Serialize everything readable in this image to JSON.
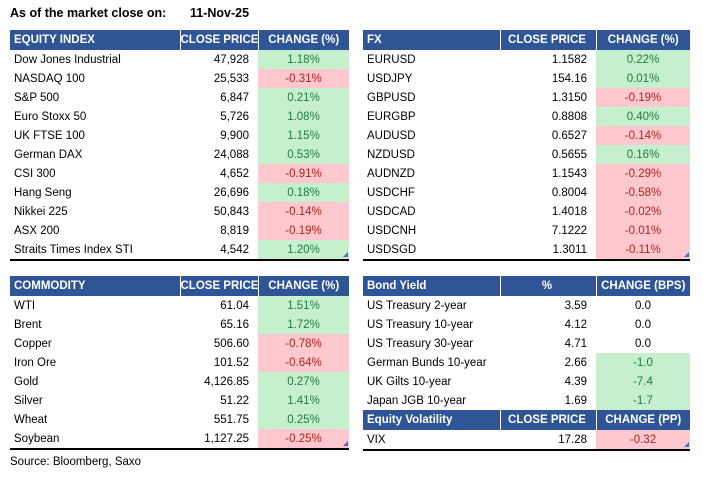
{
  "header": {
    "as_of_label": "As of the market close on:",
    "as_of_date": "11-Nov-25"
  },
  "footer": {
    "source": "Source: Bloomberg, Saxo"
  },
  "colors": {
    "header_bg": "#2F5597",
    "header_text": "#FFFFFF",
    "pos_bg": "#C6EFCE",
    "pos_text": "#1F7C3F",
    "neg_bg": "#FFC7CE",
    "neg_text": "#B02418",
    "handle_blue": "#4472C4",
    "table_border": "#000000"
  },
  "tables": {
    "equity_index": {
      "columns": {
        "name": "EQUITY INDEX",
        "price": "CLOSE PRICE",
        "change": "CHANGE (%)"
      },
      "rows": [
        {
          "name": "Dow Jones Industrial",
          "price": "47,928",
          "change": "1.18%",
          "tone": "pos"
        },
        {
          "name": "NASDAQ 100",
          "price": "25,533",
          "change": "-0.31%",
          "tone": "neg"
        },
        {
          "name": "S&P 500",
          "price": "6,847",
          "change": "0.21%",
          "tone": "pos"
        },
        {
          "name": "Euro Stoxx 50",
          "price": "5,726",
          "change": "1.08%",
          "tone": "pos"
        },
        {
          "name": "UK FTSE 100",
          "price": "9,900",
          "change": "1.15%",
          "tone": "pos"
        },
        {
          "name": "German DAX",
          "price": "24,088",
          "change": "0.53%",
          "tone": "pos"
        },
        {
          "name": "CSI 300",
          "price": "4,652",
          "change": "-0.91%",
          "tone": "neg"
        },
        {
          "name": "Hang Seng",
          "price": "26,696",
          "change": "0.18%",
          "tone": "pos"
        },
        {
          "name": "Nikkei 225",
          "price": "50,843",
          "change": "-0.14%",
          "tone": "neg"
        },
        {
          "name": "ASX 200",
          "price": "8,819",
          "change": "-0.19%",
          "tone": "neg"
        },
        {
          "name": "Straits Times Index STI",
          "price": "4,542",
          "change": "1.20%",
          "tone": "pos"
        }
      ]
    },
    "fx": {
      "columns": {
        "name": "FX",
        "price": "CLOSE PRICE",
        "change": "CHANGE (%)"
      },
      "rows": [
        {
          "name": "EURUSD",
          "price": "1.1582",
          "change": "0.22%",
          "tone": "pos"
        },
        {
          "name": "USDJPY",
          "price": "154.16",
          "change": "0.01%",
          "tone": "pos"
        },
        {
          "name": "GBPUSD",
          "price": "1.3150",
          "change": "-0.19%",
          "tone": "neg"
        },
        {
          "name": "EURGBP",
          "price": "0.8808",
          "change": "0.40%",
          "tone": "pos"
        },
        {
          "name": "AUDUSD",
          "price": "0.6527",
          "change": "-0.14%",
          "tone": "neg"
        },
        {
          "name": "NZDUSD",
          "price": "0.5655",
          "change": "0.16%",
          "tone": "pos"
        },
        {
          "name": "AUDNZD",
          "price": "1.1543",
          "change": "-0.29%",
          "tone": "neg"
        },
        {
          "name": "USDCHF",
          "price": "0.8004",
          "change": "-0.58%",
          "tone": "neg"
        },
        {
          "name": "USDCAD",
          "price": "1.4018",
          "change": "-0.02%",
          "tone": "neg"
        },
        {
          "name": "USDCNH",
          "price": "7.1222",
          "change": "-0.01%",
          "tone": "neg"
        },
        {
          "name": "USDSGD",
          "price": "1.3011",
          "change": "-0.11%",
          "tone": "neg"
        }
      ]
    },
    "commodity": {
      "columns": {
        "name": "COMMODITY",
        "price": "CLOSE PRICE",
        "change": "CHANGE (%)"
      },
      "rows": [
        {
          "name": "WTI",
          "price": "61.04",
          "change": "1.51%",
          "tone": "pos"
        },
        {
          "name": "Brent",
          "price": "65.16",
          "change": "1.72%",
          "tone": "pos"
        },
        {
          "name": "Copper",
          "price": "506.60",
          "change": "-0.78%",
          "tone": "neg"
        },
        {
          "name": "Iron Ore",
          "price": "101.52",
          "change": "-0.64%",
          "tone": "neg"
        },
        {
          "name": "Gold",
          "price": "4,126.85",
          "change": "0.27%",
          "tone": "pos"
        },
        {
          "name": "Silver",
          "price": "51.22",
          "change": "1.41%",
          "tone": "pos"
        },
        {
          "name": "Wheat",
          "price": "551.75",
          "change": "0.25%",
          "tone": "pos"
        },
        {
          "name": "Soybean",
          "price": "1,127.25",
          "change": "-0.25%",
          "tone": "neg"
        }
      ]
    },
    "bond_yield": {
      "columns": {
        "name": "Bond Yield",
        "price": "%",
        "change": "CHANGE (BPS)"
      },
      "rows": [
        {
          "name": "US Treasury 2-year",
          "price": "3.59",
          "change": "0.0",
          "tone": "none"
        },
        {
          "name": "US Treasury 10-year",
          "price": "4.12",
          "change": "0.0",
          "tone": "none"
        },
        {
          "name": "US Treasury 30-year",
          "price": "4.71",
          "change": "0.0",
          "tone": "none"
        },
        {
          "name": "German Bunds 10-year",
          "price": "2.66",
          "change": "-1.0",
          "tone": "pos"
        },
        {
          "name": "UK Gilts 10-year",
          "price": "4.39",
          "change": "-7.4",
          "tone": "pos"
        },
        {
          "name": "Japan JGB 10-year",
          "price": "1.69",
          "change": "-1.7",
          "tone": "pos"
        }
      ]
    },
    "equity_volatility": {
      "columns": {
        "name": "Equity Volatility",
        "price": "CLOSE PRICE",
        "change": "CHANGE (PP)"
      },
      "rows": [
        {
          "name": "VIX",
          "price": "17.28",
          "change": "-0.32",
          "tone": "neg"
        }
      ]
    }
  }
}
